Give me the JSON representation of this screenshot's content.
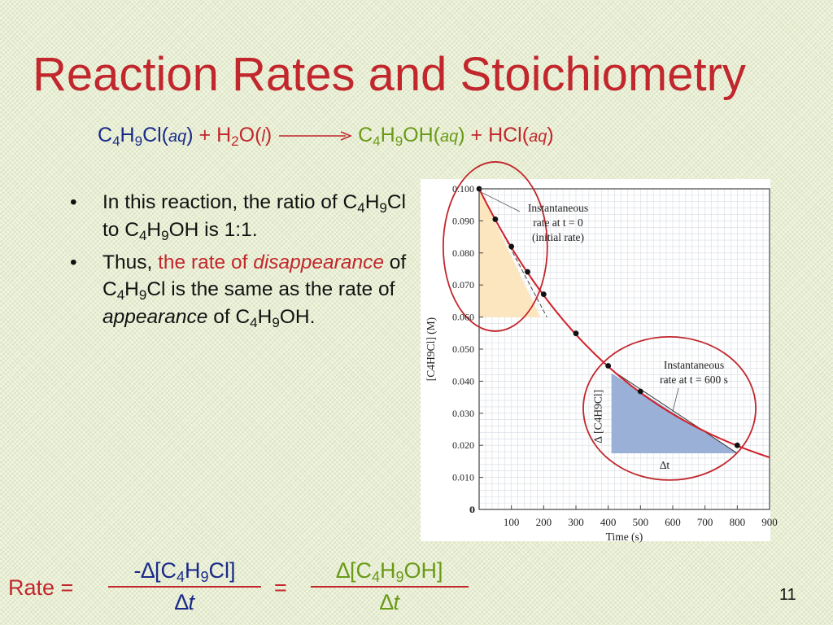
{
  "slide": {
    "title": "Reaction Rates and Stoichiometry",
    "page_number": "11"
  },
  "equation": {
    "reactant1": {
      "C": "C",
      "c_sub": "4",
      "H": "H",
      "h_sub": "9",
      "rest": "Cl",
      "state": "aq"
    },
    "plus1": "+",
    "reactant2": {
      "H": "H",
      "h_sub": "2",
      "rest": "O",
      "state": "l"
    },
    "product1": {
      "C": "C",
      "c_sub": "4",
      "H": "H",
      "h_sub": "9",
      "rest": "OH",
      "state": "aq"
    },
    "plus2": "+",
    "product2": {
      "formula": "HCl",
      "state": "aq"
    }
  },
  "bullets": {
    "b1": {
      "t1": "In this reaction, the ratio of C",
      "s1": "4",
      "t2": "H",
      "s2": "9",
      "t3": "Cl to C",
      "s3": "4",
      "t4": "H",
      "s4": "9",
      "t5": "OH is 1:1."
    },
    "b2": {
      "t1": "Thus, ",
      "red1": "the rate of ",
      "red_italic": "disappearance",
      "t2": " of C",
      "s1": "4",
      "t3": "H",
      "s2": "9",
      "t4": "Cl is the same as the rate of ",
      "italic": "appearance",
      "t5": " of C",
      "s3": "4",
      "t6": "H",
      "s4": "9",
      "t7": "OH."
    }
  },
  "rate_equation": {
    "label": "Rate =",
    "equals": "=",
    "left_num": {
      "prefix": "-∆[C",
      "s1": "4",
      "mid": "H",
      "s2": "9",
      "end": "Cl]"
    },
    "left_den": {
      "delta": "∆",
      "var": "t"
    },
    "right_num": {
      "prefix": "∆[C",
      "s1": "4",
      "mid": "H",
      "s2": "9",
      "end": "OH]"
    },
    "right_den": {
      "delta": "∆",
      "var": "t"
    }
  },
  "chart_data": {
    "type": "line",
    "xlabel": "Time (s)",
    "ylabel": "[C4H9Cl] (M)",
    "xlim": [
      0,
      900
    ],
    "ylim": [
      0,
      0.1
    ],
    "xticks": [
      100,
      200,
      300,
      400,
      500,
      600,
      700,
      800,
      900
    ],
    "yticks": [
      0,
      0.01,
      0.02,
      0.03,
      0.04,
      0.05,
      0.06,
      0.07,
      0.08,
      0.09,
      0.1
    ],
    "ytick_labels": [
      "0",
      "0.010",
      "0.020",
      "0.030",
      "0.040",
      "0.050",
      "0.060",
      "0.070",
      "0.080",
      "0.090",
      "0.100"
    ],
    "x_zero_label": "0",
    "grid": true,
    "series": [
      {
        "name": "",
        "x": [
          0,
          50,
          100,
          150,
          200,
          300,
          400,
          500,
          800
        ],
        "y": [
          0.1,
          0.0905,
          0.082,
          0.0741,
          0.0671,
          0.0549,
          0.0448,
          0.0368,
          0.02
        ]
      }
    ],
    "curve_color": "#d0202a",
    "annotations": {
      "initial_line1": "Instantaneous",
      "initial_line2": "rate at t = 0",
      "initial_line3": "(initial rate)",
      "t600_line1": "Instantaneous",
      "t600_line2": "rate at t = 600 s",
      "delta_conc": "∆ [C4H9Cl]",
      "delta_t": "∆t"
    },
    "tangent_initial": {
      "x0": 0,
      "y0": 0.1,
      "x1": 210,
      "y1": 0.06
    },
    "tangent_600": {
      "x0": 410,
      "y0": 0.0435,
      "x1": 800,
      "y1": 0.0175
    },
    "colors": {
      "initial_triangle": "#fce6bf",
      "t600_triangle": "#9bb0d6",
      "circle": "#c1272d"
    }
  }
}
